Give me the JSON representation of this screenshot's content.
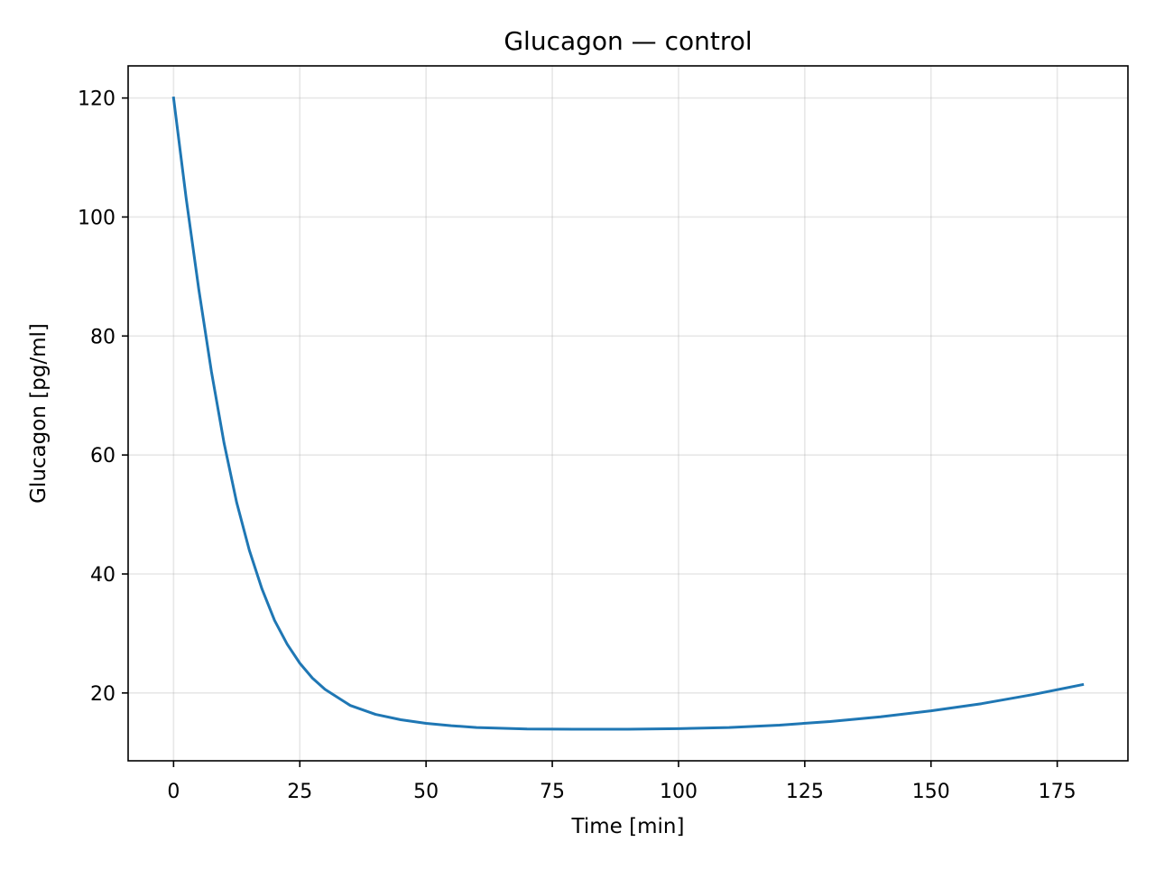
{
  "chart_data": {
    "type": "line",
    "title": "Glucagon — control",
    "xlabel": "Time [min]",
    "ylabel": "Glucagon [pg/ml]",
    "xlim": [
      -9,
      189
    ],
    "ylim": [
      8.6,
      125.4
    ],
    "xticks": [
      0,
      25,
      50,
      75,
      100,
      125,
      150,
      175
    ],
    "yticks": [
      20,
      40,
      60,
      80,
      100,
      120
    ],
    "grid": true,
    "series": [
      {
        "color": "#1f77b4",
        "x": [
          0,
          2.5,
          5,
          7.5,
          10,
          12.5,
          15,
          17.5,
          20,
          22.5,
          25,
          27.5,
          30,
          35,
          40,
          45,
          50,
          55,
          60,
          70,
          80,
          90,
          100,
          110,
          120,
          130,
          140,
          150,
          160,
          170,
          180
        ],
        "y": [
          120.0,
          103.1,
          87.8,
          74.0,
          62.0,
          52.0,
          44.0,
          37.5,
          32.2,
          28.2,
          25.0,
          22.5,
          20.6,
          17.9,
          16.4,
          15.5,
          14.9,
          14.5,
          14.2,
          13.95,
          13.9,
          13.9,
          14.0,
          14.2,
          14.6,
          15.2,
          16.0,
          17.0,
          18.2,
          19.7,
          21.4
        ]
      }
    ]
  }
}
